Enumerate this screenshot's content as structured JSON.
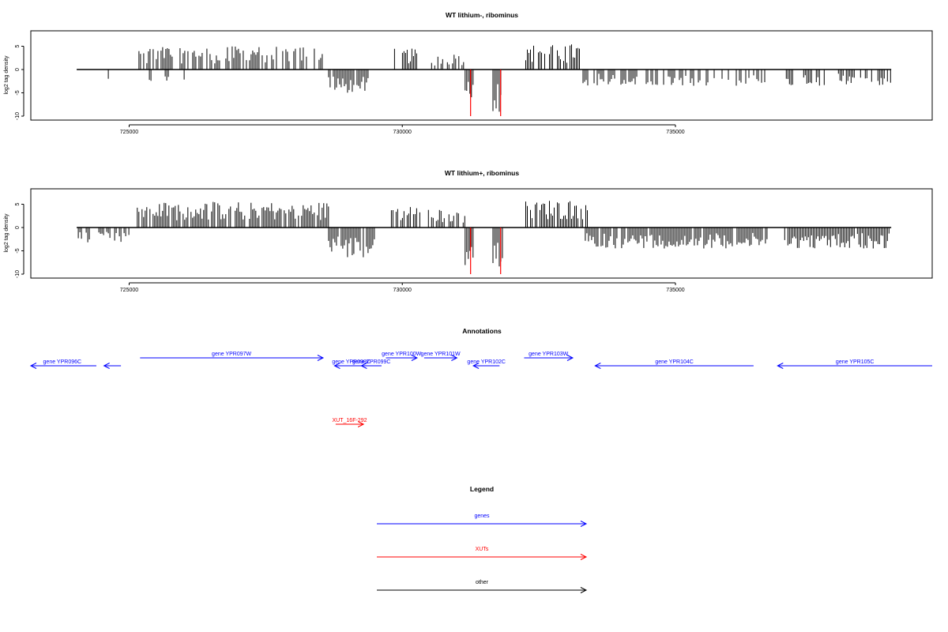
{
  "chart_data": [
    {
      "type": "bar",
      "title": "WT lithium-, ribominus",
      "ylabel": "log2 tag density",
      "xlim": [
        723200,
        739700
      ],
      "ylim": [
        -10,
        8
      ],
      "xticks": [
        725000,
        730000,
        735000
      ],
      "yticks": [
        -10,
        -5,
        0,
        5
      ],
      "series": [
        {
          "color": "#000000",
          "segments": [
            {
              "x": [
                724040,
                726050
              ],
              "y": -3.0,
              "density": 0.14
            },
            {
              "x": [
                725180,
                728550
              ],
              "y": 5.0,
              "density": 0.65
            },
            {
              "x": [
                728650,
                729400
              ],
              "y": -5.0,
              "density": 0.85
            },
            {
              "x": [
                729800,
                730280
              ],
              "y": 4.5,
              "density": 0.7
            },
            {
              "x": [
                730450,
                730860
              ],
              "y": 3.0,
              "density": 0.5
            },
            {
              "x": [
                730920,
                731200
              ],
              "y": 3.5,
              "density": 0.6
            },
            {
              "x": [
                731150,
                731310
              ],
              "y": -9.5,
              "density": 0.95
            },
            {
              "x": [
                731660,
                731840
              ],
              "y": -9.5,
              "density": 0.95
            },
            {
              "x": [
                732260,
                733250
              ],
              "y": 5.5,
              "density": 0.75
            },
            {
              "x": [
                733250,
                736700
              ],
              "y": -3.5,
              "density": 0.5
            },
            {
              "x": [
                737000,
                738950
              ],
              "y": -3.5,
              "density": 0.5
            }
          ]
        },
        {
          "color": "#ff0000",
          "bars": [
            {
              "x": 731250,
              "y": -10.0
            },
            {
              "x": 731800,
              "y": -10.0
            }
          ]
        }
      ]
    },
    {
      "type": "bar",
      "title": "WT lithium+, ribominus",
      "ylabel": "log2 tag density",
      "xlim": [
        723200,
        739700
      ],
      "ylim": [
        -10,
        8
      ],
      "xticks": [
        725000,
        730000,
        735000
      ],
      "yticks": [
        -10,
        -5,
        0,
        5
      ],
      "series": [
        {
          "color": "#000000",
          "segments": [
            {
              "x": [
                724040,
                725000
              ],
              "y": -3.5,
              "density": 0.6
            },
            {
              "x": [
                725150,
                728650
              ],
              "y": 5.5,
              "density": 0.85
            },
            {
              "x": [
                728650,
                729500
              ],
              "y": -6.5,
              "density": 0.9
            },
            {
              "x": [
                729800,
                730350
              ],
              "y": 4.5,
              "density": 0.75
            },
            {
              "x": [
                730450,
                731200
              ],
              "y": 4.0,
              "density": 0.75
            },
            {
              "x": [
                731150,
                731310
              ],
              "y": -9.5,
              "density": 0.95
            },
            {
              "x": [
                731660,
                731840
              ],
              "y": -9.5,
              "density": 0.95
            },
            {
              "x": [
                732260,
                733400
              ],
              "y": 6.0,
              "density": 0.9
            },
            {
              "x": [
                733350,
                736700
              ],
              "y": -4.5,
              "density": 0.9
            },
            {
              "x": [
                737000,
                738950
              ],
              "y": -4.5,
              "density": 0.9
            }
          ]
        },
        {
          "color": "#ff0000",
          "bars": [
            {
              "x": 731250,
              "y": -10.0
            },
            {
              "x": 731800,
              "y": -10.0
            }
          ]
        }
      ]
    }
  ],
  "annotations": {
    "title": "Annotations",
    "features": [
      {
        "label": "gene YPR096C",
        "start": 723150,
        "end": 724400,
        "color": "#0000ff"
      },
      {
        "label": "",
        "start": 724540,
        "end": 724850,
        "color": "#0000ff"
      },
      {
        "label": "gene YPR097W",
        "start": 725200,
        "end": 728550,
        "color": "#0000ff"
      },
      {
        "label": "gene YPR098C",
        "start": 728760,
        "end": 729370,
        "color": "#0000ff"
      },
      {
        "label": "gene YPR099C",
        "start": 729250,
        "end": 729620,
        "color": "#0000ff"
      },
      {
        "label": "gene YPR100W",
        "start": 729700,
        "end": 730270,
        "color": "#0000ff"
      },
      {
        "label": "gene YPR101W",
        "start": 730400,
        "end": 731000,
        "color": "#0000ff"
      },
      {
        "label": "gene YPR102C",
        "start": 731300,
        "end": 731780,
        "color": "#0000ff"
      },
      {
        "label": "gene YPR103W",
        "start": 732230,
        "end": 733120,
        "color": "#0000ff"
      },
      {
        "label": "gene YPR104C",
        "start": 733530,
        "end": 736430,
        "color": "#0000ff"
      },
      {
        "label": "gene YPR105C",
        "start": 736870,
        "end": 739700,
        "color": "#0000ff"
      },
      {
        "label": "XUT_16F-292",
        "start": 728780,
        "end": 729290,
        "color": "#ff0000"
      }
    ]
  },
  "legend": {
    "title": "Legend",
    "items": [
      {
        "label": "genes",
        "color": "#0000ff"
      },
      {
        "label": "XUTs",
        "color": "#ff0000"
      },
      {
        "label": "other",
        "color": "#000000"
      }
    ]
  }
}
